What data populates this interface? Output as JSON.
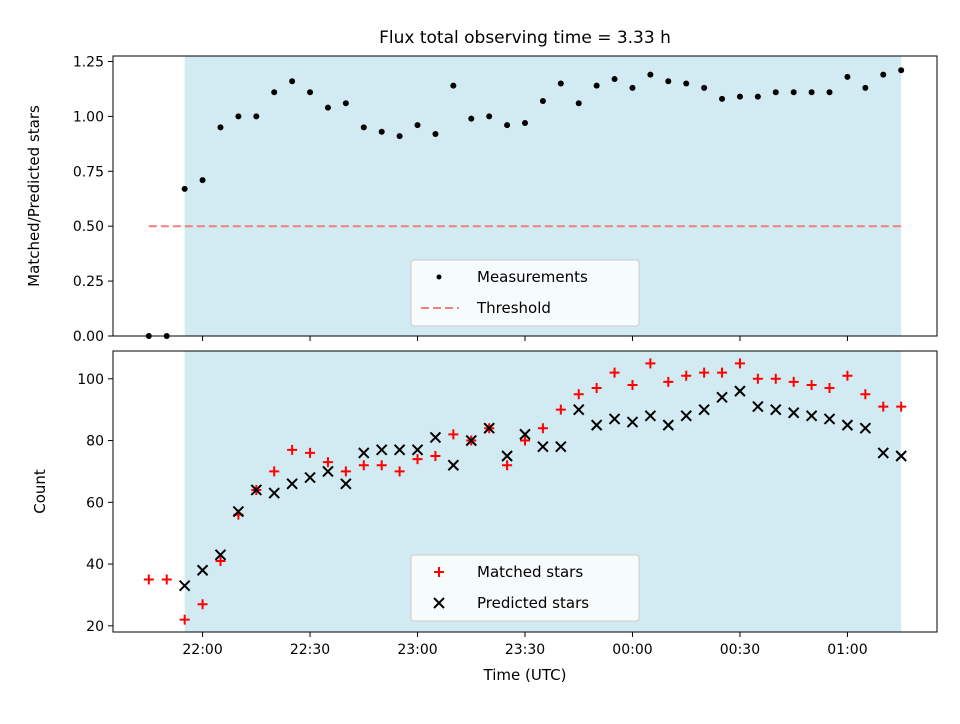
{
  "title": "Flux total observing time = 3.33 h",
  "colors": {
    "shade": "#add8e6",
    "threshold": "#f08080",
    "measure": "#000000",
    "matched": "#ff0000",
    "predicted": "#000000"
  },
  "chart_data": [
    {
      "type": "scatter",
      "ylabel": "Matched/Predicted stars",
      "ylim": [
        0,
        1.275
      ],
      "yticks": [
        0.0,
        0.25,
        0.5,
        0.75,
        1.0,
        1.25
      ],
      "ytick_labels": [
        "0.00",
        "0.25",
        "0.50",
        "0.75",
        "1.00",
        "1.25"
      ],
      "shaded_span": [
        "21:55",
        "01:15"
      ],
      "legend": {
        "position": "lower center",
        "entries": [
          "Measurements",
          "Threshold"
        ]
      },
      "threshold": {
        "value": 0.5,
        "x_range": [
          "21:45",
          "01:15"
        ]
      },
      "series": [
        {
          "name": "Measurements",
          "x": [
            "21:45",
            "21:50",
            "21:55",
            "22:00",
            "22:05",
            "22:10",
            "22:15",
            "22:20",
            "22:25",
            "22:30",
            "22:35",
            "22:40",
            "22:45",
            "22:50",
            "22:55",
            "23:00",
            "23:05",
            "23:10",
            "23:15",
            "23:20",
            "23:25",
            "23:30",
            "23:35",
            "23:40",
            "23:45",
            "23:50",
            "23:55",
            "00:00",
            "00:05",
            "00:10",
            "00:15",
            "00:20",
            "00:25",
            "00:30",
            "00:35",
            "00:40",
            "00:45",
            "00:50",
            "00:55",
            "01:00",
            "01:05",
            "01:10",
            "01:15"
          ],
          "values": [
            0.0,
            0.0,
            0.67,
            0.71,
            0.95,
            1.0,
            1.0,
            1.11,
            1.16,
            1.11,
            1.04,
            1.06,
            0.95,
            0.93,
            0.91,
            0.96,
            0.92,
            1.14,
            0.99,
            1.0,
            0.96,
            0.97,
            1.07,
            1.15,
            1.06,
            1.14,
            1.17,
            1.13,
            1.19,
            1.16,
            1.15,
            1.13,
            1.08,
            1.09,
            1.09,
            1.11,
            1.11,
            1.11,
            1.11,
            1.18,
            1.13,
            1.19,
            1.21
          ]
        }
      ]
    },
    {
      "type": "scatter",
      "xlabel": "Time (UTC)",
      "ylabel": "Count",
      "ylim": [
        18,
        109
      ],
      "yticks": [
        20,
        40,
        60,
        80,
        100
      ],
      "ytick_labels": [
        "20",
        "40",
        "60",
        "80",
        "100"
      ],
      "xticks": [
        "22:00",
        "22:30",
        "23:00",
        "23:30",
        "00:00",
        "00:30",
        "01:00"
      ],
      "shaded_span": [
        "21:55",
        "01:15"
      ],
      "legend": {
        "position": "lower center",
        "entries": [
          "Matched stars",
          "Predicted stars"
        ]
      },
      "series": [
        {
          "name": "Matched stars",
          "x": [
            "21:45",
            "21:50",
            "21:55",
            "22:00",
            "22:05",
            "22:10",
            "22:15",
            "22:20",
            "22:25",
            "22:30",
            "22:35",
            "22:40",
            "22:45",
            "22:50",
            "22:55",
            "23:00",
            "23:05",
            "23:10",
            "23:15",
            "23:20",
            "23:25",
            "23:30",
            "23:35",
            "23:40",
            "23:45",
            "23:50",
            "23:55",
            "00:00",
            "00:05",
            "00:10",
            "00:15",
            "00:20",
            "00:25",
            "00:30",
            "00:35",
            "00:40",
            "00:45",
            "00:50",
            "00:55",
            "01:00",
            "01:05",
            "01:10",
            "01:15"
          ],
          "values": [
            35,
            35,
            22,
            27,
            41,
            56,
            64,
            70,
            77,
            76,
            73,
            70,
            72,
            72,
            70,
            74,
            75,
            82,
            80,
            84,
            72,
            80,
            84,
            90,
            95,
            97,
            102,
            98,
            105,
            99,
            101,
            102,
            102,
            105,
            100,
            100,
            99,
            98,
            97,
            101,
            95,
            91,
            91
          ]
        },
        {
          "name": "Predicted stars",
          "x": [
            "21:55",
            "22:00",
            "22:05",
            "22:10",
            "22:15",
            "22:20",
            "22:25",
            "22:30",
            "22:35",
            "22:40",
            "22:45",
            "22:50",
            "22:55",
            "23:00",
            "23:05",
            "23:10",
            "23:15",
            "23:20",
            "23:25",
            "23:30",
            "23:35",
            "23:40",
            "23:45",
            "23:50",
            "23:55",
            "00:00",
            "00:05",
            "00:10",
            "00:15",
            "00:20",
            "00:25",
            "00:30",
            "00:35",
            "00:40",
            "00:45",
            "00:50",
            "00:55",
            "01:00",
            "01:05",
            "01:10",
            "01:15"
          ],
          "values": [
            33,
            38,
            43,
            57,
            64,
            63,
            66,
            68,
            70,
            66,
            76,
            77,
            77,
            77,
            81,
            72,
            80,
            84,
            75,
            82,
            78,
            78,
            90,
            85,
            87,
            86,
            88,
            85,
            88,
            90,
            94,
            96,
            91,
            90,
            89,
            88,
            87,
            85,
            84,
            76,
            75
          ]
        }
      ]
    }
  ]
}
